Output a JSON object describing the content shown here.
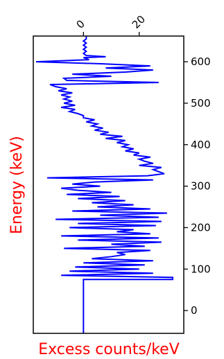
{
  "chart_data": {
    "type": "line",
    "title": "",
    "orientation": "vertical-energy-axis",
    "xlabel": "Excess counts/keV",
    "ylabel": "Energy (keV)",
    "label_color": "#ff0000",
    "series_color": "#0000ff",
    "xlim": [
      -18,
      36
    ],
    "ylim": [
      -55,
      662
    ],
    "x_ticks": [
      0,
      20
    ],
    "x_tick_labels": [
      "0",
      "20"
    ],
    "y_ticks": [
      0,
      100,
      200,
      300,
      400,
      500,
      600
    ],
    "y_tick_labels": [
      "0",
      "100",
      "200",
      "300",
      "400",
      "500",
      "600"
    ],
    "legend": "none",
    "grid": false,
    "series": [
      {
        "points": [
          {
            "energy": -55,
            "counts": 0
          },
          {
            "energy": 75,
            "counts": 0
          },
          {
            "energy": 75,
            "counts": 32
          },
          {
            "energy": 80,
            "counts": 32
          },
          {
            "energy": 85,
            "counts": -8
          },
          {
            "energy": 90,
            "counts": 25
          },
          {
            "energy": 95,
            "counts": -5
          },
          {
            "energy": 100,
            "counts": 20
          },
          {
            "energy": 105,
            "counts": -3
          },
          {
            "energy": 110,
            "counts": 22
          },
          {
            "energy": 115,
            "counts": 0
          },
          {
            "energy": 120,
            "counts": 25
          },
          {
            "energy": 125,
            "counts": 3
          },
          {
            "energy": 130,
            "counts": 10
          },
          {
            "energy": 135,
            "counts": 15
          },
          {
            "energy": 140,
            "counts": 12
          },
          {
            "energy": 145,
            "counts": 24
          },
          {
            "energy": 150,
            "counts": -7
          },
          {
            "energy": 155,
            "counts": 22
          },
          {
            "energy": 160,
            "counts": 10
          },
          {
            "energy": 165,
            "counts": 28
          },
          {
            "energy": 170,
            "counts": -2
          },
          {
            "energy": 175,
            "counts": 27
          },
          {
            "energy": 180,
            "counts": -8
          },
          {
            "energy": 185,
            "counts": 24
          },
          {
            "energy": 190,
            "counts": 12
          },
          {
            "energy": 195,
            "counts": 18
          },
          {
            "energy": 200,
            "counts": -5
          },
          {
            "energy": 205,
            "counts": 26
          },
          {
            "energy": 210,
            "counts": -2
          },
          {
            "energy": 215,
            "counts": 28
          },
          {
            "energy": 220,
            "counts": -10
          },
          {
            "energy": 225,
            "counts": 27
          },
          {
            "energy": 230,
            "counts": 6
          },
          {
            "energy": 235,
            "counts": 30
          },
          {
            "energy": 240,
            "counts": -4
          },
          {
            "energy": 245,
            "counts": 24
          },
          {
            "energy": 250,
            "counts": 5
          },
          {
            "energy": 255,
            "counts": 18
          },
          {
            "energy": 260,
            "counts": 3
          },
          {
            "energy": 265,
            "counts": 15
          },
          {
            "energy": 270,
            "counts": -2
          },
          {
            "energy": 275,
            "counts": 13
          },
          {
            "energy": 280,
            "counts": -6
          },
          {
            "energy": 285,
            "counts": 10
          },
          {
            "energy": 290,
            "counts": -2
          },
          {
            "energy": 295,
            "counts": -8
          },
          {
            "energy": 300,
            "counts": 6
          },
          {
            "energy": 305,
            "counts": -4
          },
          {
            "energy": 310,
            "counts": 4
          },
          {
            "energy": 315,
            "counts": 25
          },
          {
            "energy": 320,
            "counts": -13
          },
          {
            "energy": 325,
            "counts": 23
          },
          {
            "energy": 330,
            "counts": 29
          },
          {
            "energy": 335,
            "counts": 27
          },
          {
            "energy": 340,
            "counts": 25
          },
          {
            "energy": 345,
            "counts": 28
          },
          {
            "energy": 350,
            "counts": 20
          },
          {
            "energy": 355,
            "counts": 25
          },
          {
            "energy": 360,
            "counts": 22
          },
          {
            "energy": 365,
            "counts": 20
          },
          {
            "energy": 370,
            "counts": 24
          },
          {
            "energy": 375,
            "counts": 18
          },
          {
            "energy": 380,
            "counts": 20
          },
          {
            "energy": 385,
            "counts": 15
          },
          {
            "energy": 390,
            "counts": 18
          },
          {
            "energy": 395,
            "counts": 14
          },
          {
            "energy": 400,
            "counts": 16
          },
          {
            "energy": 405,
            "counts": 12
          },
          {
            "energy": 410,
            "counts": 15
          },
          {
            "energy": 415,
            "counts": 8
          },
          {
            "energy": 420,
            "counts": 14
          },
          {
            "energy": 425,
            "counts": 6
          },
          {
            "energy": 430,
            "counts": 9
          },
          {
            "energy": 435,
            "counts": 4
          },
          {
            "energy": 440,
            "counts": 7
          },
          {
            "energy": 445,
            "counts": 3
          },
          {
            "energy": 450,
            "counts": 5
          },
          {
            "energy": 455,
            "counts": 1
          },
          {
            "energy": 460,
            "counts": 4
          },
          {
            "energy": 465,
            "counts": 0
          },
          {
            "energy": 470,
            "counts": 0
          },
          {
            "energy": 475,
            "counts": -2
          },
          {
            "energy": 480,
            "counts": -5
          },
          {
            "energy": 485,
            "counts": -3
          },
          {
            "energy": 490,
            "counts": -8
          },
          {
            "energy": 495,
            "counts": -3
          },
          {
            "energy": 500,
            "counts": -7
          },
          {
            "energy": 505,
            "counts": -4
          },
          {
            "energy": 510,
            "counts": -7
          },
          {
            "energy": 515,
            "counts": -5
          },
          {
            "energy": 520,
            "counts": -8
          },
          {
            "energy": 525,
            "counts": -4
          },
          {
            "energy": 530,
            "counts": -9
          },
          {
            "energy": 535,
            "counts": -6
          },
          {
            "energy": 540,
            "counts": -10
          },
          {
            "energy": 545,
            "counts": -12
          },
          {
            "energy": 550,
            "counts": 27
          },
          {
            "energy": 555,
            "counts": -6
          },
          {
            "energy": 560,
            "counts": -7
          },
          {
            "energy": 565,
            "counts": 10
          },
          {
            "energy": 570,
            "counts": -4
          },
          {
            "energy": 575,
            "counts": 15
          },
          {
            "energy": 580,
            "counts": 25
          },
          {
            "energy": 585,
            "counts": 8
          },
          {
            "energy": 590,
            "counts": 24
          },
          {
            "energy": 595,
            "counts": 7
          },
          {
            "energy": 600,
            "counts": -17
          },
          {
            "energy": 605,
            "counts": 2
          },
          {
            "energy": 610,
            "counts": 0
          },
          {
            "energy": 612,
            "counts": 8
          },
          {
            "energy": 615,
            "counts": 1
          },
          {
            "energy": 620,
            "counts": 0
          },
          {
            "energy": 625,
            "counts": 1
          },
          {
            "energy": 630,
            "counts": 0
          },
          {
            "energy": 635,
            "counts": 1
          },
          {
            "energy": 640,
            "counts": 0
          },
          {
            "energy": 645,
            "counts": 1
          },
          {
            "energy": 650,
            "counts": 0
          },
          {
            "energy": 655,
            "counts": 1
          },
          {
            "energy": 662,
            "counts": 1
          }
        ]
      }
    ]
  }
}
